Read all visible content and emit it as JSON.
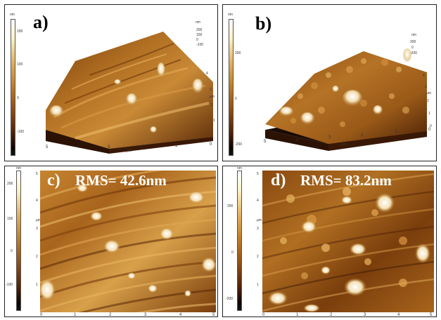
{
  "panels": {
    "a": {
      "label": "a)",
      "colorbar_unit": "nm",
      "colorbar_ticks": [
        "200",
        "100",
        "0",
        "-100"
      ],
      "z_scale_unit": "nm",
      "z_scale_ticks": [
        "200",
        "100",
        "0",
        "-100"
      ],
      "x_ticks": [
        "5",
        "4",
        "3",
        "2",
        "1",
        "0"
      ],
      "x_unit": "µm",
      "y_ticks": [
        "4",
        "3",
        "2",
        "1"
      ],
      "y_unit": "µm"
    },
    "b": {
      "label": "b)",
      "colorbar_unit": "nm",
      "colorbar_ticks": [
        "200",
        "0",
        "-200"
      ],
      "z_scale_unit": "nm",
      "z_scale_ticks": [
        "200",
        "0",
        "-200"
      ],
      "x_ticks": [
        "5",
        "4",
        "3",
        "2",
        "1",
        "0"
      ],
      "x_unit": "µm",
      "y_ticks": [
        "4",
        "3",
        "2",
        "1",
        "0"
      ],
      "y_unit": "µm"
    },
    "c": {
      "label": "c)",
      "rms_text": "RMS= 42.6nm",
      "colorbar_unit": "nm",
      "colorbar_ticks": [
        "200",
        "100",
        "0",
        "-100"
      ],
      "x_ticks": [
        "0",
        "1",
        "2",
        "3",
        "4",
        "5"
      ],
      "y_ticks": [
        "5",
        "4",
        "3",
        "2",
        "1"
      ],
      "axis_unit": "µm"
    },
    "d": {
      "label": "d)",
      "rms_text": "RMS= 83.2nm",
      "colorbar_unit": "nm",
      "colorbar_ticks": [
        "200",
        "0",
        "-200"
      ],
      "x_ticks": [
        "0",
        "1",
        "2",
        "3",
        "4",
        "5"
      ],
      "y_ticks": [
        "5",
        "4",
        "3",
        "2",
        "1"
      ],
      "axis_unit": "µm"
    }
  },
  "colors": {
    "afm_dark": "#3a1a04",
    "afm_mid": "#a8641c",
    "afm_light": "#f5d9a0",
    "label_color": "#000000",
    "rms_color": "#ffffff"
  }
}
